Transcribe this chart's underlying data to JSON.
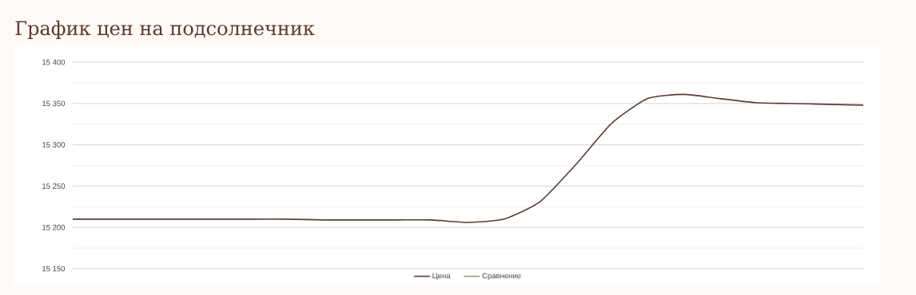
{
  "chart_data": {
    "type": "line",
    "title": "График цен на подсолнечник",
    "categories": [
      null,
      null,
      null,
      null,
      null,
      null,
      null,
      null,
      null,
      null,
      null,
      null,
      null,
      null,
      null,
      null,
      null,
      null,
      null,
      null,
      null,
      null,
      null
    ],
    "series": [
      {
        "name": "Цена",
        "color": "#5b3a36",
        "values": [
          15210,
          15210,
          15210,
          15210,
          15210,
          15210,
          15210,
          15209,
          15209,
          15209,
          15209,
          15206,
          15210,
          15231,
          15276,
          15326,
          15356,
          15361,
          15356,
          15351,
          15350,
          15349,
          15348
        ]
      },
      {
        "name": "Сравнение",
        "color": "#9a9a88",
        "values": [
          null,
          null,
          null,
          null,
          null,
          null,
          null,
          null,
          null,
          null,
          null,
          null,
          null,
          null,
          null,
          null,
          null,
          null,
          null,
          null,
          null,
          null,
          null
        ]
      }
    ],
    "ylim": [
      15150,
      15400
    ],
    "yticks": [
      {
        "value": 15150,
        "label": "15 150"
      },
      {
        "value": 15175,
        "label": null
      },
      {
        "value": 15200,
        "label": "15 200"
      },
      {
        "value": 15225,
        "label": null
      },
      {
        "value": 15250,
        "label": "15 250"
      },
      {
        "value": 15275,
        "label": null
      },
      {
        "value": 15300,
        "label": "15 300"
      },
      {
        "value": 15325,
        "label": null
      },
      {
        "value": 15350,
        "label": "15 350"
      },
      {
        "value": 15375,
        "label": null
      },
      {
        "value": 15400,
        "label": "15 400"
      }
    ],
    "grid": "y",
    "legend": "bottom",
    "tick_labels": "y",
    "marker": "none",
    "line_style": "solid"
  }
}
